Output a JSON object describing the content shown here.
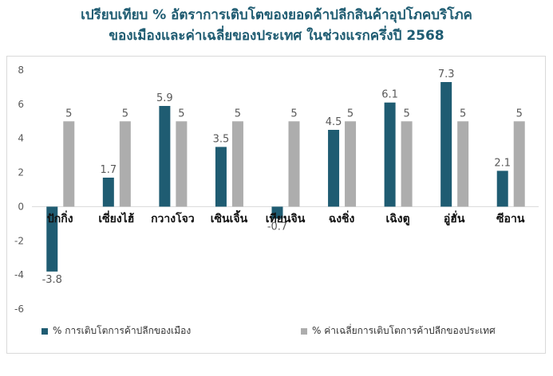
{
  "title_line1": "เปรียบเทียบ % อัตราการเติบโตของยอดค้าปลีกสินค้าอุปโภคบริโภค",
  "title_line2": "ของเมืองและค่าเฉลี่ยของประเทศ ในช่วงแรกครึ่งปี 2568",
  "colors": {
    "city": "#1f5c72",
    "national": "#adadad",
    "title": "#1f5c72"
  },
  "chart_data": {
    "type": "bar",
    "categories": [
      "ปักกิ่ง",
      "เซี่ยงไฮ้",
      "กวางโจว",
      "เซินเจิ้น",
      "เทียนจิน",
      "ฉงชิ่ง",
      "เฉิงตู",
      "อู่ฮั่น",
      "ซีอาน"
    ],
    "series": [
      {
        "name": "% การเติบโตการค้าปลีกของเมือง",
        "values": [
          -3.8,
          1.7,
          5.9,
          3.5,
          -0.7,
          4.5,
          6.1,
          7.3,
          2.1
        ]
      },
      {
        "name": "% ค่าเฉลี่ยการเติบโตการค้าปลีกของประเทศ",
        "values": [
          5,
          5,
          5,
          5,
          5,
          5,
          5,
          5,
          5
        ]
      }
    ],
    "yticks": [
      -6,
      -4,
      -2,
      0,
      2,
      4,
      6,
      8
    ],
    "ylim": [
      -6,
      8
    ],
    "grid": false,
    "legend": "bottom"
  }
}
